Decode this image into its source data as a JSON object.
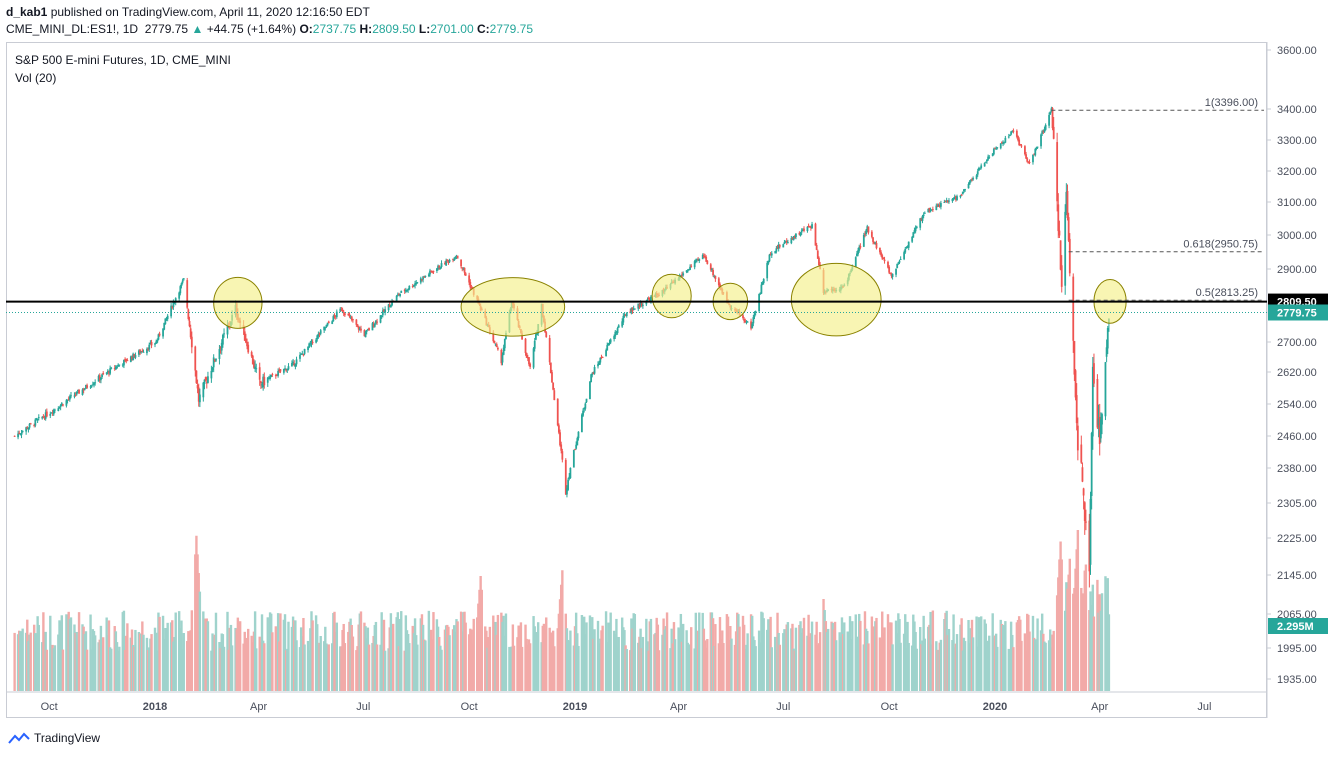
{
  "header": {
    "publisher": "d_kab1",
    "published_text": "published on TradingView.com, April 11, 2020 12:16:50 EDT",
    "symbol": "CME_MINI_DL:ES1!, 1D",
    "last": "2779.75",
    "change": "+44.75 (+1.64%)",
    "o_label": "O:",
    "o": "2737.75",
    "h_label": "H:",
    "h": "2809.50",
    "l_label": "L:",
    "l": "2701.00",
    "c_label": "C:",
    "c": "2779.75"
  },
  "legend": {
    "title": "S&P 500 E-mini Futures, 1D, CME_MINI",
    "volume": "Vol (20)"
  },
  "footer": {
    "brand": "TradingView"
  },
  "colors": {
    "up": "#26a69a",
    "down": "#ef5350",
    "up_vol": "#9fd3cc",
    "down_vol": "#f2aaa8",
    "highlight": "#f5ef8a",
    "axis_text": "#4a4f5c"
  },
  "chart_data": {
    "type": "candlestick",
    "title": "S&P 500 E-mini Futures, 1D, CME_MINI",
    "price_axis_ticks": [
      3600,
      3400,
      3300,
      3200,
      3100,
      3000,
      2900,
      2800,
      2700,
      2620,
      2540,
      2460,
      2380,
      2305,
      2225,
      2145,
      2065,
      1995,
      1935
    ],
    "price_axis_labels": [
      "3600.00",
      "3400.00",
      "3300.00",
      "3200.00",
      "3100.00",
      "3000.00",
      "2900.00",
      "2700.00",
      "2620.00",
      "2540.00",
      "2460.00",
      "2380.00",
      "2305.00",
      "2225.00",
      "2145.00",
      "2065.00",
      "1995.00",
      "1935.00"
    ],
    "time_axis_labels": [
      "Oct",
      "2018",
      "Apr",
      "Jul",
      "Oct",
      "2019",
      "Apr",
      "Jul",
      "Oct",
      "2020",
      "Apr",
      "Jul"
    ],
    "price_path": [
      [
        "2017-09-01",
        2460
      ],
      [
        "2017-10-02",
        2520
      ],
      [
        "2017-11-01",
        2580
      ],
      [
        "2017-12-01",
        2640
      ],
      [
        "2018-01-02",
        2700
      ],
      [
        "2018-01-26",
        2870
      ],
      [
        "2018-02-08",
        2550
      ],
      [
        "2018-03-12",
        2790
      ],
      [
        "2018-04-02",
        2590
      ],
      [
        "2018-05-01",
        2640
      ],
      [
        "2018-06-12",
        2790
      ],
      [
        "2018-07-02",
        2720
      ],
      [
        "2018-08-01",
        2830
      ],
      [
        "2018-09-20",
        2940
      ],
      [
        "2018-10-11",
        2790
      ],
      [
        "2018-10-29",
        2650
      ],
      [
        "2018-11-07",
        2810
      ],
      [
        "2018-11-23",
        2630
      ],
      [
        "2018-12-03",
        2800
      ],
      [
        "2018-12-24",
        2330
      ],
      [
        "2019-01-15",
        2610
      ],
      [
        "2019-02-15",
        2780
      ],
      [
        "2019-03-20",
        2840
      ],
      [
        "2019-04-23",
        2940
      ],
      [
        "2019-05-13",
        2810
      ],
      [
        "2019-06-03",
        2740
      ],
      [
        "2019-06-20",
        2950
      ],
      [
        "2019-07-26",
        3030
      ],
      [
        "2019-08-05",
        2840
      ],
      [
        "2019-08-23",
        2850
      ],
      [
        "2019-09-12",
        3020
      ],
      [
        "2019-10-03",
        2880
      ],
      [
        "2019-11-01",
        3070
      ],
      [
        "2019-12-02",
        3120
      ],
      [
        "2019-12-27",
        3250
      ],
      [
        "2020-01-17",
        3330
      ],
      [
        "2020-01-31",
        3220
      ],
      [
        "2020-02-19",
        3396
      ],
      [
        "2020-02-28",
        2860
      ],
      [
        "2020-03-03",
        3120
      ],
      [
        "2020-03-12",
        2480
      ],
      [
        "2020-03-23",
        2175
      ],
      [
        "2020-03-26",
        2630
      ],
      [
        "2020-04-01",
        2450
      ],
      [
        "2020-04-09",
        2790
      ]
    ],
    "last_price": 2779.75,
    "last_price_label": "2779.75",
    "horizontal_line": 2809.5,
    "horizontal_line_label": "2809.50",
    "fib_levels": [
      {
        "label": "1(3396.00)",
        "price": 3396.0
      },
      {
        "label": "0.618(2950.75)",
        "price": 2950.75
      },
      {
        "label": "0.5(2813.25)",
        "price": 2813.25
      }
    ],
    "volume_label": "2.295M",
    "volume_ylim": [
      0,
      2800000
    ],
    "volume_spikes": [
      [
        "2018-02-06",
        2700000
      ],
      [
        "2018-10-11",
        2000000
      ],
      [
        "2018-12-21",
        2100000
      ],
      [
        "2019-08-05",
        1600000
      ],
      [
        "2020-02-27",
        2600000
      ],
      [
        "2020-03-06",
        2300000
      ],
      [
        "2020-03-13",
        2800000
      ],
      [
        "2020-03-20",
        2200000
      ]
    ],
    "highlighted_zones": [
      {
        "center_date": "2018-03-14",
        "center_price": 2806,
        "date_halfspan_days": 21,
        "price_halfspan": 70
      },
      {
        "center_date": "2018-11-08",
        "center_price": 2795,
        "date_halfspan_days": 45,
        "price_halfspan": 80
      },
      {
        "center_date": "2019-03-26",
        "center_price": 2825,
        "date_halfspan_days": 17,
        "price_halfspan": 60
      },
      {
        "center_date": "2019-05-16",
        "center_price": 2810,
        "date_halfspan_days": 15,
        "price_halfspan": 50
      },
      {
        "center_date": "2019-08-16",
        "center_price": 2815,
        "date_halfspan_days": 39,
        "price_halfspan": 100
      },
      {
        "center_date": "2020-04-10",
        "center_price": 2810,
        "date_halfspan_days": 14,
        "price_halfspan": 60
      }
    ]
  }
}
